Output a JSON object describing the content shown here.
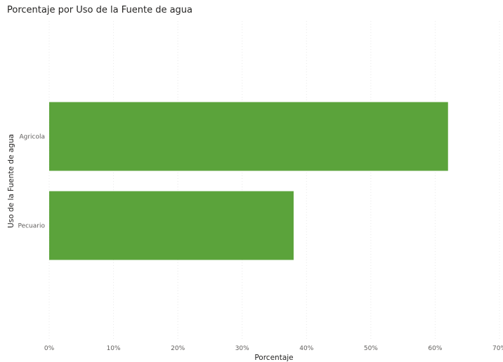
{
  "chart_data": {
    "type": "bar",
    "orientation": "horizontal",
    "title": "Porcentaje por Uso de la Fuente de agua",
    "xlabel": "Porcentaje",
    "ylabel": "Uso de la Fuente de agua",
    "categories": [
      "Agricola",
      "Pecuario"
    ],
    "values": [
      0.62,
      0.38
    ],
    "xlim": [
      0,
      0.7
    ],
    "x_ticks": [
      "0%",
      "10%",
      "20%",
      "30%",
      "40%",
      "50%",
      "60%",
      "70%"
    ],
    "grid": true,
    "bar_color": "#5ba33b"
  }
}
